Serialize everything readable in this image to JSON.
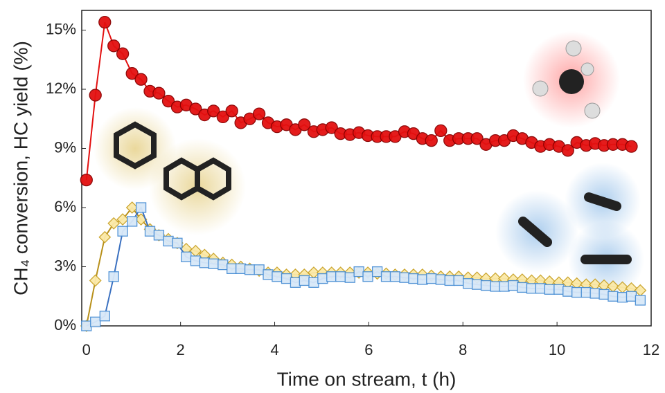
{
  "chart_data": {
    "type": "line",
    "xlabel": "Time on stream, t (h)",
    "ylabel": "CH₄ conversion, HC yield (%)",
    "xlim": [
      -0.1,
      12
    ],
    "ylim": [
      0,
      16
    ],
    "xticks": [
      0,
      2,
      4,
      6,
      8,
      10,
      12
    ],
    "yticks": [
      {
        "value": 0,
        "label": "0%"
      },
      {
        "value": 3,
        "label": "3%"
      },
      {
        "value": 6,
        "label": "6%"
      },
      {
        "value": 9,
        "label": "9%"
      },
      {
        "value": 12,
        "label": "12%"
      },
      {
        "value": 15,
        "label": "15%"
      }
    ],
    "x": [
      0,
      0.19,
      0.39,
      0.58,
      0.77,
      0.97,
      1.16,
      1.35,
      1.54,
      1.74,
      1.93,
      2.12,
      2.32,
      2.51,
      2.7,
      2.9,
      3.09,
      3.28,
      3.47,
      3.67,
      3.86,
      4.05,
      4.25,
      4.44,
      4.63,
      4.83,
      5.02,
      5.21,
      5.4,
      5.6,
      5.79,
      5.98,
      6.18,
      6.37,
      6.56,
      6.76,
      6.95,
      7.14,
      7.33,
      7.53,
      7.72,
      7.91,
      8.11,
      8.3,
      8.49,
      8.69,
      8.88,
      9.07,
      9.26,
      9.46,
      9.65,
      9.84,
      10.04,
      10.23,
      10.42,
      10.62,
      10.81,
      11.0,
      11.19,
      11.39,
      11.58,
      11.77
    ],
    "series": [
      {
        "color": "#e31010",
        "marker": "circle",
        "values": [
          7.4,
          11.7,
          15.4,
          14.2,
          13.8,
          12.8,
          12.5,
          11.9,
          11.8,
          11.4,
          11.1,
          11.2,
          11.0,
          10.7,
          10.9,
          10.6,
          10.9,
          10.3,
          10.5,
          10.75,
          10.3,
          10.1,
          10.2,
          9.95,
          10.2,
          9.85,
          9.95,
          10.05,
          9.75,
          9.7,
          9.8,
          9.65,
          9.6,
          9.6,
          9.6,
          9.85,
          9.75,
          9.5,
          9.4,
          9.9,
          9.4,
          9.5,
          9.5,
          9.5,
          9.2,
          9.4,
          9.4,
          9.65,
          9.5,
          9.3,
          9.1,
          9.2,
          9.1,
          8.9,
          9.3,
          9.15,
          9.25,
          9.15,
          9.2,
          9.2,
          9.1,
          null
        ]
      },
      {
        "color": "#b8901a",
        "marker": "diamond",
        "values": [
          0,
          2.3,
          4.5,
          5.2,
          5.4,
          6.0,
          5.4,
          4.9,
          4.6,
          4.4,
          4.2,
          3.9,
          3.8,
          3.6,
          3.4,
          3.2,
          3.1,
          3.0,
          2.9,
          2.8,
          2.7,
          2.7,
          2.6,
          2.6,
          2.6,
          2.7,
          2.7,
          2.7,
          2.7,
          2.7,
          2.7,
          2.7,
          2.65,
          2.65,
          2.6,
          2.6,
          2.6,
          2.6,
          2.55,
          2.5,
          2.5,
          2.5,
          2.45,
          2.45,
          2.4,
          2.4,
          2.4,
          2.35,
          2.35,
          2.3,
          2.3,
          2.25,
          2.2,
          2.2,
          2.15,
          2.1,
          2.1,
          2.05,
          2.0,
          1.95,
          1.9,
          1.8
        ]
      },
      {
        "color": "#3a70c0",
        "marker": "square",
        "values": [
          0,
          0.2,
          0.5,
          2.5,
          4.8,
          5.3,
          6.0,
          4.8,
          4.6,
          4.3,
          4.2,
          3.5,
          3.3,
          3.2,
          3.15,
          3.1,
          2.9,
          2.9,
          2.85,
          2.85,
          2.6,
          2.5,
          2.4,
          2.2,
          2.3,
          2.2,
          2.4,
          2.5,
          2.5,
          2.45,
          2.75,
          2.5,
          2.75,
          2.5,
          2.5,
          2.45,
          2.4,
          2.35,
          2.4,
          2.35,
          2.3,
          2.3,
          2.15,
          2.1,
          2.05,
          2.0,
          2.0,
          2.05,
          1.95,
          1.9,
          1.9,
          1.85,
          1.85,
          1.75,
          1.7,
          1.7,
          1.65,
          1.6,
          1.5,
          1.45,
          1.5,
          1.3
        ]
      }
    ]
  }
}
